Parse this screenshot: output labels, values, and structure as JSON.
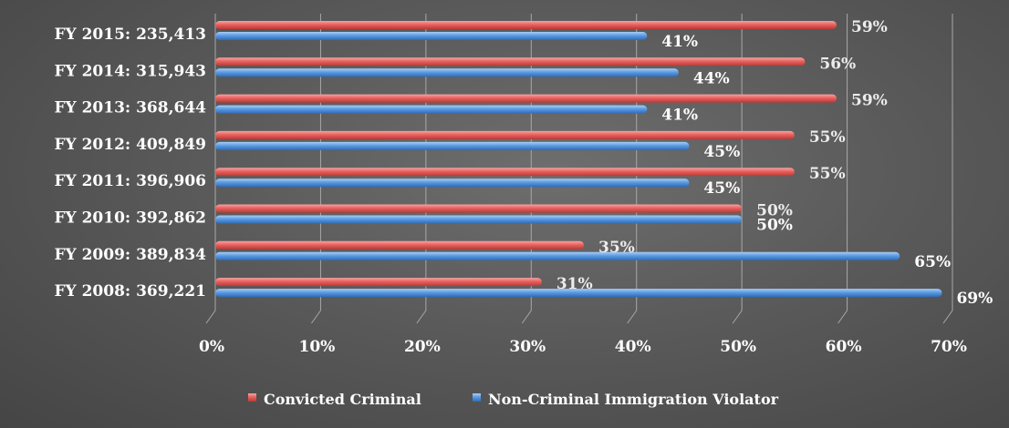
{
  "chart_data": {
    "type": "bar",
    "orientation": "horizontal",
    "categories": [
      "FY 2015: 235,413",
      "FY 2014: 315,943",
      "FY 2013: 368,644",
      "FY 2012: 409,849",
      "FY 2011: 396,906",
      "FY 2010: 392,862",
      "FY 2009: 389,834",
      "FY 2008: 369,221"
    ],
    "series": [
      {
        "name": "Convicted Criminal",
        "values": [
          59,
          56,
          59,
          55,
          55,
          50,
          35,
          31
        ],
        "labels": [
          "59%",
          "56%",
          "59%",
          "55%",
          "55%",
          "50%",
          "35%",
          "31%"
        ],
        "color": "#e8625f"
      },
      {
        "name": "Non-Criminal Immigration Violator",
        "values": [
          41,
          44,
          41,
          45,
          45,
          50,
          65,
          69
        ],
        "labels": [
          "41%",
          "44%",
          "41%",
          "45%",
          "45%",
          "50%",
          "65%",
          "69%"
        ],
        "color": "#5b9be3"
      }
    ],
    "xlim": [
      0,
      70
    ],
    "xticks": [
      "0%",
      "10%",
      "20%",
      "30%",
      "40%",
      "50%",
      "60%",
      "70%"
    ],
    "grid": true,
    "legend_position": "bottom",
    "title": "",
    "xlabel": "",
    "ylabel": ""
  }
}
